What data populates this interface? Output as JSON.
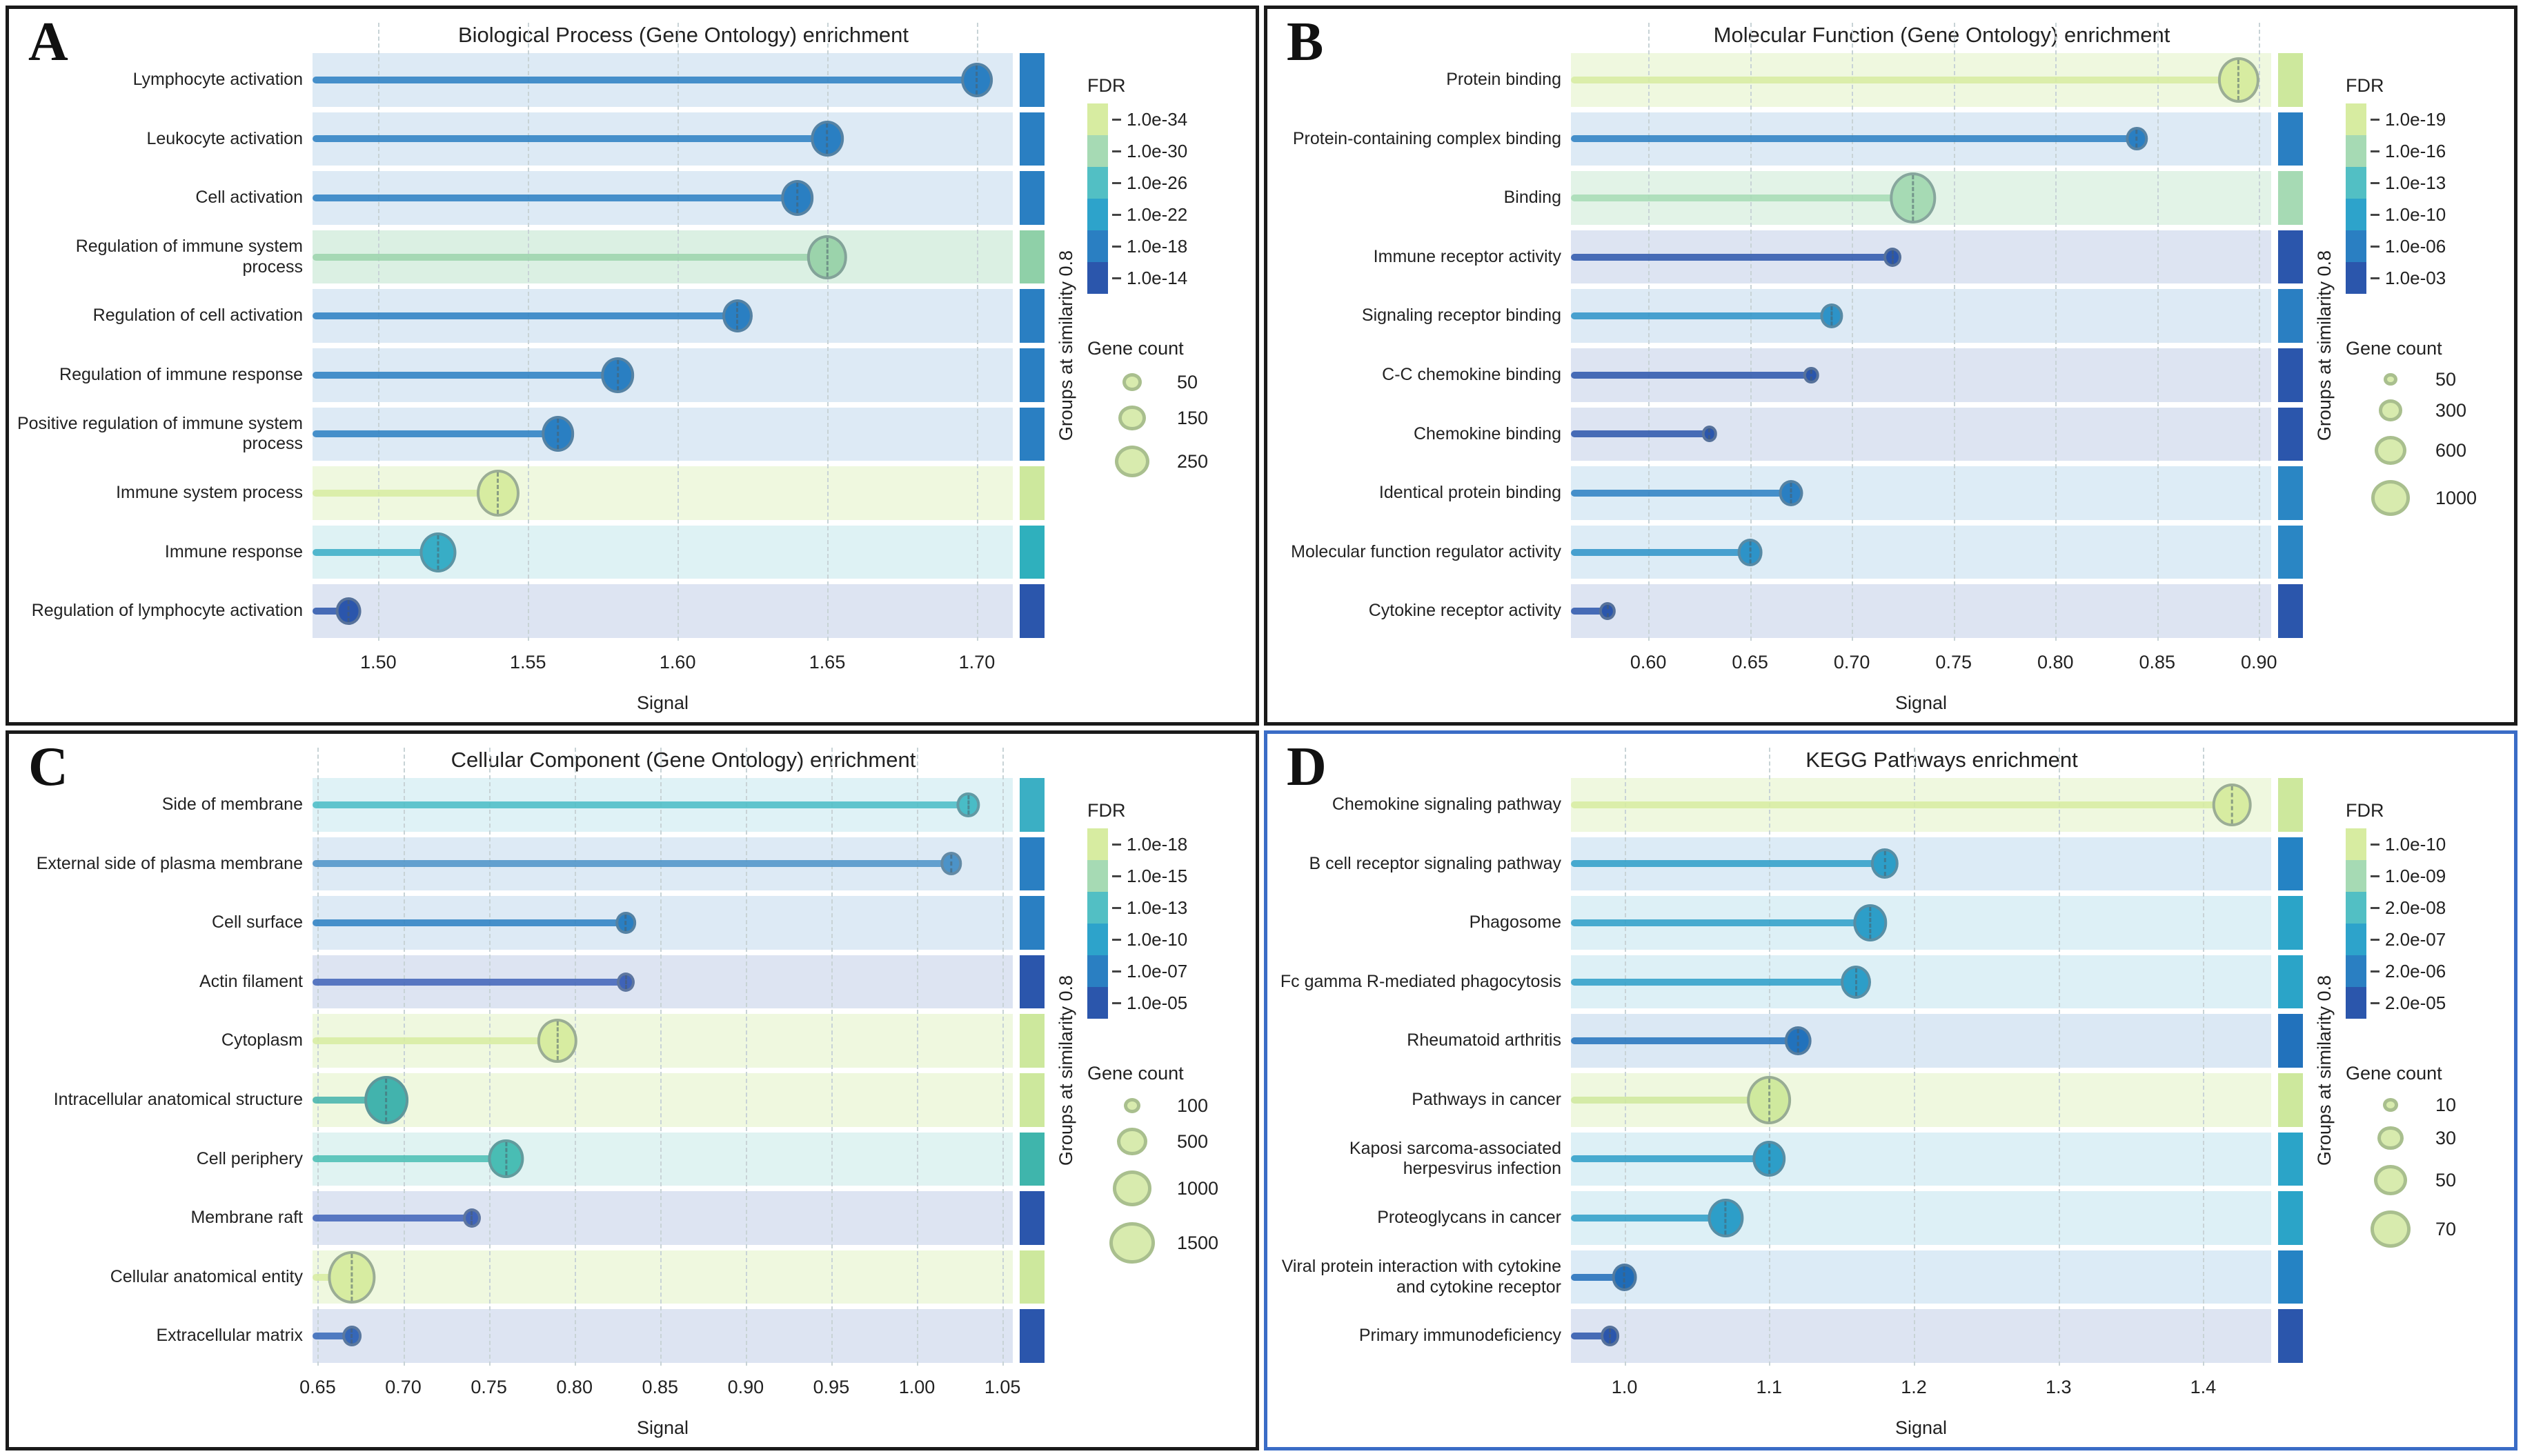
{
  "figure": {
    "background": "#ffffff",
    "groups_axis_label": "Groups at similarity 0.8",
    "fdr_palette": [
      "#d7eca1",
      "#a6dab4",
      "#52bfc4",
      "#2da3cb",
      "#2a7fc2",
      "#2b56ac"
    ]
  },
  "chart_data": [
    {
      "type": "lollipop",
      "panel_letter": "A",
      "title": "Biological Process (Gene Ontology) enrichment",
      "xlabel": "Signal",
      "border_color": "#1a1a1a",
      "grid": true,
      "xlim": [
        1.478,
        1.712
      ],
      "xticks": [
        "1.50",
        "1.55",
        "1.60",
        "1.65",
        "1.70"
      ],
      "groups_label": "Groups at similarity 0.8",
      "categories": [
        "Lymphocyte activation",
        "Leukocyte activation",
        "Cell activation",
        "Regulation of immune system process",
        "Regulation of cell activation",
        "Regulation of immune response",
        "Positive regulation of immune system process",
        "Immune system process",
        "Immune response",
        "Regulation of lymphocyte activation"
      ],
      "values": [
        1.7,
        1.65,
        1.64,
        1.65,
        1.62,
        1.58,
        1.56,
        1.54,
        1.52,
        1.49
      ],
      "gene_counts": [
        160,
        165,
        170,
        230,
        140,
        150,
        150,
        250,
        180,
        90
      ],
      "bubble_radii": [
        21,
        22,
        22,
        28,
        20,
        22,
        22,
        30,
        25,
        16
      ],
      "fdr_colors": [
        "#2a7fc2",
        "#2a7fc2",
        "#2a7fc2",
        "#9bd3ab",
        "#2a7fc2",
        "#2a7fc2",
        "#2a7fc2",
        "#d7eca1",
        "#38adc6",
        "#2b56ac"
      ],
      "group_colors": [
        "#2a7fc2",
        "#2a7fc2",
        "#2a7fc2",
        "#8fd0a8",
        "#2a7fc2",
        "#2a7fc2",
        "#2a7fc2",
        "#cde89d",
        "#2fb0bd",
        "#2b56ac"
      ],
      "legend_fdr": {
        "title": "FDR",
        "labels": [
          "1.0e-34",
          "1.0e-30",
          "1.0e-26",
          "1.0e-22",
          "1.0e-18",
          "1.0e-14"
        ],
        "colors": [
          "#d7eca1",
          "#a6dab4",
          "#52bfc4",
          "#2da3cb",
          "#2a7fc2",
          "#2b56ac"
        ]
      },
      "legend_gene_count": {
        "title": "Gene count",
        "items": [
          {
            "label": "50",
            "r": 14
          },
          {
            "label": "150",
            "r": 20
          },
          {
            "label": "250",
            "r": 25
          }
        ]
      }
    },
    {
      "type": "lollipop",
      "panel_letter": "B",
      "title": "Molecular Function (Gene Ontology) enrichment",
      "xlabel": "Signal",
      "border_color": "#1a1a1a",
      "grid": true,
      "xlim": [
        0.562,
        0.906
      ],
      "xticks": [
        "0.60",
        "0.65",
        "0.70",
        "0.75",
        "0.80",
        "0.85",
        "0.90"
      ],
      "groups_label": "Groups at similarity 0.8",
      "categories": [
        "Protein binding",
        "Protein-containing complex binding",
        "Binding",
        "Immune receptor activity",
        "Signaling receptor binding",
        "C-C chemokine binding",
        "Chemokine binding",
        "Identical protein binding",
        "Molecular function regulator activity",
        "Cytokine receptor activity"
      ],
      "values": [
        0.89,
        0.84,
        0.73,
        0.72,
        0.69,
        0.68,
        0.63,
        0.67,
        0.65,
        0.58
      ],
      "gene_counts": [
        1000,
        160,
        1150,
        50,
        180,
        15,
        15,
        200,
        220,
        30
      ],
      "bubble_radii": [
        29,
        13,
        33,
        10,
        14,
        8,
        8,
        15,
        16,
        9
      ],
      "fdr_colors": [
        "#d7eca1",
        "#2a7fc2",
        "#a6dab4",
        "#2b56ac",
        "#2d93c8",
        "#2b56ac",
        "#2b56ac",
        "#2a7fc2",
        "#2d93c8",
        "#2b56ac"
      ],
      "group_colors": [
        "#cde89d",
        "#2a7fc2",
        "#a6dab4",
        "#2b56ac",
        "#2a7fc2",
        "#2b56ac",
        "#2b56ac",
        "#2a86c4",
        "#2a86c4",
        "#2b56ac"
      ],
      "legend_fdr": {
        "title": "FDR",
        "labels": [
          "1.0e-19",
          "1.0e-16",
          "1.0e-13",
          "1.0e-10",
          "1.0e-06",
          "1.0e-03"
        ],
        "colors": [
          "#d7eca1",
          "#a6dab4",
          "#52bfc4",
          "#2da3cb",
          "#2a7fc2",
          "#2b56ac"
        ]
      },
      "legend_gene_count": {
        "title": "Gene count",
        "items": [
          {
            "label": "50",
            "r": 10
          },
          {
            "label": "300",
            "r": 17
          },
          {
            "label": "600",
            "r": 23
          },
          {
            "label": "1000",
            "r": 28
          }
        ]
      }
    },
    {
      "type": "lollipop",
      "panel_letter": "C",
      "title": "Cellular Component (Gene Ontology) enrichment",
      "xlabel": "Signal",
      "border_color": "#1a1a1a",
      "grid": true,
      "xlim": [
        0.647,
        1.056
      ],
      "xticks": [
        "0.65",
        "0.70",
        "0.75",
        "0.80",
        "0.85",
        "0.90",
        "0.95",
        "1.00",
        "1.05"
      ],
      "groups_label": "Groups at similarity 0.8",
      "categories": [
        "Side of membrane",
        "External side of plasma membrane",
        "Cell surface",
        "Actin filament",
        "Cytoplasm",
        "Intracellular anatomical structure",
        "Cell periphery",
        "Membrane raft",
        "Cellular anatomical entity",
        "Extracellular matrix"
      ],
      "values": [
        1.03,
        1.02,
        0.83,
        0.83,
        0.79,
        0.69,
        0.76,
        0.74,
        0.67,
        0.67
      ],
      "gene_counts": [
        160,
        140,
        110,
        60,
        550,
        700,
        450,
        60,
        850,
        80
      ],
      "bubble_radii": [
        14,
        13,
        12,
        10,
        28,
        31,
        24,
        10,
        34,
        11
      ],
      "fdr_colors": [
        "#49bcc6",
        "#4c93c8",
        "#2a7fc2",
        "#3f63b8",
        "#d7eca1",
        "#42b3ad",
        "#49bdb4",
        "#3f63b8",
        "#d7eca1",
        "#3567b8"
      ],
      "group_colors": [
        "#3bafc4",
        "#2a7fc2",
        "#2a7fc2",
        "#2b56ac",
        "#cde89d",
        "#cde89d",
        "#3fb5ac",
        "#2b56ac",
        "#cde89d",
        "#2b56ac"
      ],
      "legend_fdr": {
        "title": "FDR",
        "labels": [
          "1.0e-18",
          "1.0e-15",
          "1.0e-13",
          "1.0e-10",
          "1.0e-07",
          "1.0e-05"
        ],
        "colors": [
          "#d7eca1",
          "#a6dab4",
          "#52bfc4",
          "#2da3cb",
          "#2a7fc2",
          "#2b56ac"
        ]
      },
      "legend_gene_count": {
        "title": "Gene count",
        "items": [
          {
            "label": "100",
            "r": 12
          },
          {
            "label": "500",
            "r": 22
          },
          {
            "label": "1000",
            "r": 28
          },
          {
            "label": "1500",
            "r": 33
          }
        ]
      }
    },
    {
      "type": "lollipop",
      "panel_letter": "D",
      "title": "KEGG Pathways enrichment",
      "xlabel": "Signal",
      "border_color": "#3a6cc6",
      "grid": true,
      "xlim": [
        0.963,
        1.447
      ],
      "xticks": [
        "1.0",
        "1.1",
        "1.2",
        "1.3",
        "1.4"
      ],
      "groups_label": "Groups at similarity 0.8",
      "categories": [
        "Chemokine signaling pathway",
        "B cell receptor signaling pathway",
        "Phagosome",
        "Fc gamma R-mediated phagocytosis",
        "Rheumatoid arthritis",
        "Pathways in cancer",
        "Kaposi sarcoma-associated herpesvirus infection",
        "Proteoglycans in cancer",
        "Viral protein interaction with cytokine and cytokine receptor",
        "Primary immunodeficiency"
      ],
      "values": [
        1.42,
        1.18,
        1.17,
        1.16,
        1.12,
        1.1,
        1.1,
        1.07,
        1.0,
        0.99
      ],
      "gene_counts": [
        42,
        26,
        36,
        28,
        22,
        62,
        36,
        38,
        22,
        12
      ],
      "bubble_radii": [
        27,
        18,
        23,
        20,
        17,
        31,
        22,
        24,
        16,
        11
      ],
      "fdr_colors": [
        "#d7eca1",
        "#2d9ec8",
        "#2d9ec8",
        "#2d9ec8",
        "#2272bc",
        "#cfe99e",
        "#2d9ec8",
        "#2d9ec8",
        "#1f6cb8",
        "#2b56ac"
      ],
      "group_colors": [
        "#cde89d",
        "#2583c4",
        "#2ba4c8",
        "#2ba4c8",
        "#2272bc",
        "#cde89d",
        "#2ba4c8",
        "#2ba4c8",
        "#2583c4",
        "#2b56ac"
      ],
      "legend_fdr": {
        "title": "FDR",
        "labels": [
          "1.0e-10",
          "1.0e-09",
          "2.0e-08",
          "2.0e-07",
          "2.0e-06",
          "2.0e-05"
        ],
        "colors": [
          "#d7eca1",
          "#a6dab4",
          "#52bfc4",
          "#2da3cb",
          "#2a7fc2",
          "#2b56ac"
        ]
      },
      "legend_gene_count": {
        "title": "Gene count",
        "items": [
          {
            "label": "10",
            "r": 11
          },
          {
            "label": "30",
            "r": 19
          },
          {
            "label": "50",
            "r": 24
          },
          {
            "label": "70",
            "r": 29
          }
        ]
      }
    }
  ]
}
